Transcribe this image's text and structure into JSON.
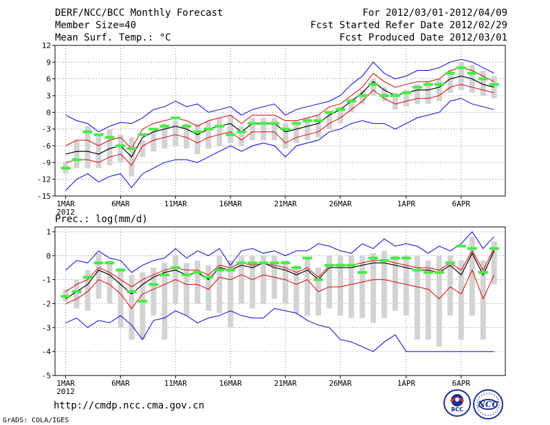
{
  "header": {
    "title": "DERF/NCC/BCC Monthly Forecast",
    "member_size": "Member Size=40",
    "variable": "Mean Surf. Temp.: °C",
    "forecast_period": "For 2012/03/01-2012/04/09",
    "started_refer_date": "Fcst Started Refer Date 2012/02/29",
    "produced_date": "Fcst Produced Date 2012/03/01"
  },
  "footer": {
    "url": "http://cmdp.ncc.cma.gov.cn",
    "credit": "GrADS: COLA/IGES",
    "logo_bcc": "BCC",
    "logo_ncc": "NCC"
  },
  "colors": {
    "member_bar": "#d3d3d3",
    "observation": "#44ee44",
    "ensemble_mean": "#000000",
    "ensemble_spread": "#dd0000",
    "ensemble_extremes": "#0000dd",
    "grid": "#666666"
  },
  "chart_data": [
    {
      "type": "line",
      "name": "temperature",
      "title": "Mean Surf. Temp.: °C",
      "xlabel": "",
      "ylabel": "°C",
      "ylim": [
        -15,
        12
      ],
      "yticks": [
        12,
        9,
        6,
        3,
        0,
        -3,
        -6,
        -9,
        -12,
        -15
      ],
      "x_tick_days": [
        1,
        6,
        11,
        16,
        21,
        26,
        32,
        37
      ],
      "x_tick_labels": [
        "1MAR",
        "6MAR",
        "11MAR",
        "16MAR",
        "21MAR",
        "26MAR",
        "1APR",
        "6APR"
      ],
      "x_year_label": "2012",
      "grid": true,
      "days": [
        1,
        2,
        3,
        4,
        5,
        6,
        7,
        8,
        9,
        10,
        11,
        12,
        13,
        14,
        15,
        16,
        17,
        18,
        19,
        20,
        21,
        22,
        23,
        24,
        25,
        26,
        27,
        28,
        29,
        30,
        31,
        32,
        33,
        34,
        35,
        36,
        37,
        38,
        39,
        40
      ],
      "series": [
        {
          "name": "max",
          "values": [
            -0.5,
            -1.5,
            -2,
            -3.5,
            -2.5,
            -1.8,
            -2,
            -1,
            0.5,
            1,
            2,
            1,
            1.5,
            0,
            0.5,
            1,
            -0.5,
            0.5,
            1,
            1.5,
            -0.5,
            0.5,
            1,
            1.5,
            2,
            3,
            5,
            6.5,
            9,
            7,
            6,
            6.5,
            7.5,
            7.5,
            8,
            9,
            9.5,
            9,
            8,
            7
          ]
        },
        {
          "name": "plus_spread",
          "values": [
            -6,
            -5,
            -5,
            -6,
            -5,
            -4.5,
            -6.5,
            -3,
            -2,
            -1.5,
            -1,
            -1.5,
            -2.5,
            -1.5,
            -1,
            -0.5,
            -2,
            -0.5,
            -0.5,
            -0.5,
            -1.5,
            -1.5,
            -1,
            -0.5,
            1,
            1.5,
            3,
            4.5,
            7,
            5.5,
            4.5,
            5,
            5.5,
            5.5,
            6,
            7.5,
            8,
            7.5,
            6.5,
            5.5
          ]
        },
        {
          "name": "mean",
          "values": [
            -7.5,
            -7,
            -7,
            -7.5,
            -6.5,
            -6,
            -8,
            -4.5,
            -3.5,
            -3,
            -2.5,
            -3,
            -4,
            -3,
            -2.5,
            -2,
            -3.5,
            -2,
            -2,
            -2,
            -3.5,
            -3,
            -2.5,
            -2,
            -0.5,
            0.5,
            2,
            3.5,
            5.5,
            4,
            3,
            3.5,
            4,
            4,
            4.5,
            6,
            6.5,
            6,
            5,
            4.5
          ]
        },
        {
          "name": "minus_spread",
          "values": [
            -9,
            -8.5,
            -8.5,
            -9,
            -8,
            -7.5,
            -9.5,
            -6,
            -5,
            -4.5,
            -4,
            -4.5,
            -5.5,
            -4.5,
            -4,
            -3.5,
            -5,
            -3.5,
            -3.5,
            -3.5,
            -5.5,
            -4.5,
            -4,
            -3.5,
            -2,
            -1,
            0.5,
            2,
            4,
            2.5,
            1.5,
            2,
            2.5,
            2.5,
            3,
            4.5,
            5,
            4.5,
            4,
            3.5
          ]
        },
        {
          "name": "min",
          "values": [
            -14,
            -12,
            -11,
            -12.5,
            -11.5,
            -11,
            -13.5,
            -11,
            -10,
            -9,
            -8.5,
            -8.5,
            -9,
            -8,
            -7,
            -6,
            -7,
            -6,
            -5.5,
            -6,
            -8,
            -6,
            -5.5,
            -5,
            -3.5,
            -3,
            -2,
            -1.5,
            -2,
            -2,
            -3,
            -2,
            -1,
            -0.5,
            0,
            2,
            2.5,
            1.5,
            1,
            0.5
          ]
        },
        {
          "name": "member_upper",
          "values": [
            -9,
            -5,
            -2.5,
            -4,
            -3,
            -4,
            -4.5,
            -5,
            -3,
            -2,
            -1.5,
            -2,
            -2,
            -1.5,
            -1,
            -0.5,
            -2.5,
            -1,
            -1,
            -1,
            -2,
            -1.5,
            -1,
            -0.5,
            0,
            1,
            2.5,
            4,
            6,
            4.5,
            3.5,
            4,
            5,
            5.5,
            6,
            7.5,
            9,
            8.5,
            7.5,
            6.5
          ]
        },
        {
          "name": "member_lower",
          "values": [
            -11,
            -10,
            -10,
            -10,
            -9.5,
            -9,
            -11.5,
            -8,
            -7,
            -6.5,
            -6,
            -6.5,
            -7.5,
            -6.5,
            -6,
            -5.5,
            -6,
            -5,
            -5,
            -5,
            -6.5,
            -5.5,
            -5,
            -4.5,
            -3,
            -2,
            0,
            1.5,
            3,
            2,
            0.5,
            1,
            1.5,
            1.5,
            2,
            3.5,
            4,
            3.5,
            3,
            2.5
          ]
        },
        {
          "name": "observation",
          "values": [
            -10,
            -8.5,
            -3.5,
            -4,
            -4.5,
            -6,
            -6.5,
            -4,
            -3,
            -2.5,
            -1,
            -2.5,
            -3.5,
            -3,
            -2.5,
            -4,
            -3.5,
            -2,
            -2,
            -2,
            -3,
            -2,
            -1.5,
            -1.5,
            0,
            0.5,
            2,
            3,
            5,
            3,
            3,
            3.5,
            4.5,
            5,
            5,
            7,
            8,
            7,
            6,
            5
          ]
        }
      ]
    },
    {
      "type": "line",
      "name": "precipitation",
      "title": "Prec.: log(mm/d)",
      "xlabel": "",
      "ylabel": "log(mm/d)",
      "ylim": [
        -5,
        1.2
      ],
      "yticks": [
        1,
        0,
        -1,
        -2,
        -3,
        -4,
        -5
      ],
      "x_tick_days": [
        1,
        6,
        11,
        16,
        21,
        26,
        32,
        37
      ],
      "x_tick_labels": [
        "1MAR",
        "6MAR",
        "11MAR",
        "16MAR",
        "21MAR",
        "26MAR",
        "1APR",
        "6APR"
      ],
      "x_year_label": "2012",
      "grid": true,
      "days": [
        1,
        2,
        3,
        4,
        5,
        6,
        7,
        8,
        9,
        10,
        11,
        12,
        13,
        14,
        15,
        16,
        17,
        18,
        19,
        20,
        21,
        22,
        23,
        24,
        25,
        26,
        27,
        28,
        29,
        30,
        31,
        32,
        33,
        34,
        35,
        36,
        37,
        38,
        39,
        40
      ],
      "series": [
        {
          "name": "max",
          "values": [
            -0.6,
            -0.2,
            -0.3,
            0.2,
            -0.1,
            -0.2,
            -0.7,
            -0.4,
            -0.2,
            -0.1,
            0.3,
            -0.1,
            0.2,
            0,
            0.3,
            -0.4,
            0.2,
            0.3,
            0.1,
            0.2,
            0,
            0.2,
            0.2,
            0.5,
            0.4,
            0.2,
            0.1,
            0.5,
            0.3,
            0.7,
            0.4,
            0.5,
            0.4,
            0.1,
            0.4,
            0.2,
            0.5,
            1,
            0.3,
            0.8
          ]
        },
        {
          "name": "plus_spread",
          "values": [
            -1.5,
            -1.2,
            -1,
            -0.5,
            -0.7,
            -1,
            -1.3,
            -1,
            -0.8,
            -0.6,
            -0.5,
            -0.6,
            -0.6,
            -0.8,
            -0.4,
            -0.5,
            -0.3,
            -0.4,
            -0.3,
            -0.4,
            -0.5,
            -0.7,
            -0.5,
            -0.9,
            -0.4,
            -0.4,
            -0.4,
            -0.3,
            -0.2,
            -0.2,
            -0.3,
            -0.4,
            -0.5,
            -0.5,
            -0.6,
            -0.3,
            -0.6,
            0.2,
            -0.6,
            0.3
          ]
        },
        {
          "name": "mean",
          "values": [
            -1.8,
            -1.5,
            -1.2,
            -0.6,
            -0.8,
            -1.2,
            -1.6,
            -1.2,
            -0.9,
            -0.7,
            -0.6,
            -0.8,
            -0.7,
            -1,
            -0.5,
            -0.6,
            -0.4,
            -0.5,
            -0.3,
            -0.5,
            -0.6,
            -0.8,
            -0.6,
            -1,
            -0.5,
            -0.5,
            -0.5,
            -0.4,
            -0.3,
            -0.3,
            -0.4,
            -0.5,
            -0.6,
            -0.6,
            -0.7,
            -0.4,
            -0.8,
            0.1,
            -0.8,
            0.2
          ]
        },
        {
          "name": "minus_spread",
          "values": [
            -2,
            -1.8,
            -1.5,
            -1,
            -1.2,
            -1.6,
            -2.2,
            -1.6,
            -1.4,
            -1.2,
            -1,
            -1.2,
            -1.2,
            -1.4,
            -0.9,
            -1,
            -0.8,
            -1,
            -0.8,
            -0.9,
            -1,
            -1.2,
            -1,
            -1.5,
            -1.3,
            -1.3,
            -1.2,
            -1.1,
            -1,
            -1,
            -1.1,
            -1.2,
            -1.3,
            -1.4,
            -1.8,
            -1.3,
            -1.6,
            -0.6,
            -1.8,
            -0.8
          ]
        },
        {
          "name": "min",
          "values": [
            -2.8,
            -2.6,
            -3,
            -2.7,
            -2.8,
            -2.5,
            -2.9,
            -3.5,
            -2.7,
            -2.6,
            -2.3,
            -2.5,
            -2.8,
            -2.6,
            -2.5,
            -2.3,
            -2.5,
            -2.6,
            -2.6,
            -2.2,
            -2.3,
            -2.4,
            -2.7,
            -2.9,
            -3,
            -3.5,
            -3.6,
            -3.8,
            -4,
            -3.6,
            -3.3,
            -4,
            -4,
            -4,
            -4,
            -4,
            -4,
            -4,
            -4,
            -4
          ]
        },
        {
          "name": "member_upper",
          "values": [
            -1.4,
            -1,
            -0.6,
            0.1,
            -0.2,
            -0.5,
            -0.8,
            -0.7,
            -0.5,
            -0.3,
            0,
            -0.3,
            -0.2,
            -0.4,
            0,
            -0.2,
            0,
            0,
            0,
            0,
            -0.2,
            -0.4,
            -0.1,
            -0.5,
            0,
            0,
            0,
            0,
            0.1,
            0.2,
            0,
            0,
            0,
            -0.2,
            0,
            0,
            -0.2,
            0.8,
            -0.2,
            0.6
          ]
        },
        {
          "name": "member_lower",
          "values": [
            -1.9,
            -2.2,
            -2.3,
            -1.8,
            -2,
            -3,
            -3.5,
            -3.5,
            -2.5,
            -3.5,
            -2,
            -2.5,
            -2,
            -2.3,
            -2.4,
            -3,
            -2,
            -2.2,
            -2,
            -1.8,
            -2,
            -2.4,
            -2.5,
            -2.5,
            -2.2,
            -2.5,
            -2.6,
            -2.6,
            -2.8,
            -2.6,
            -2.3,
            -2.5,
            -3.5,
            -3.5,
            -3.8,
            -2.5,
            -3.5,
            -2.5,
            -3.5,
            -1.2
          ]
        },
        {
          "name": "observation",
          "values": [
            -1.7,
            -1.5,
            -0.9,
            -0.3,
            -0.3,
            -0.6,
            -1.5,
            -1.9,
            -1.2,
            -0.8,
            -0.5,
            -0.8,
            -0.7,
            -0.9,
            -0.6,
            -0.6,
            -0.3,
            -0.3,
            -0.3,
            -0.3,
            -0.3,
            -0.5,
            -0.1,
            -1,
            -0.4,
            -0.4,
            -0.4,
            -0.7,
            -0.1,
            -0.2,
            -0.1,
            -0.1,
            -0.6,
            -0.7,
            -0.7,
            -0.3,
            0.4,
            0.3,
            -0.7,
            0.3
          ]
        }
      ]
    }
  ]
}
